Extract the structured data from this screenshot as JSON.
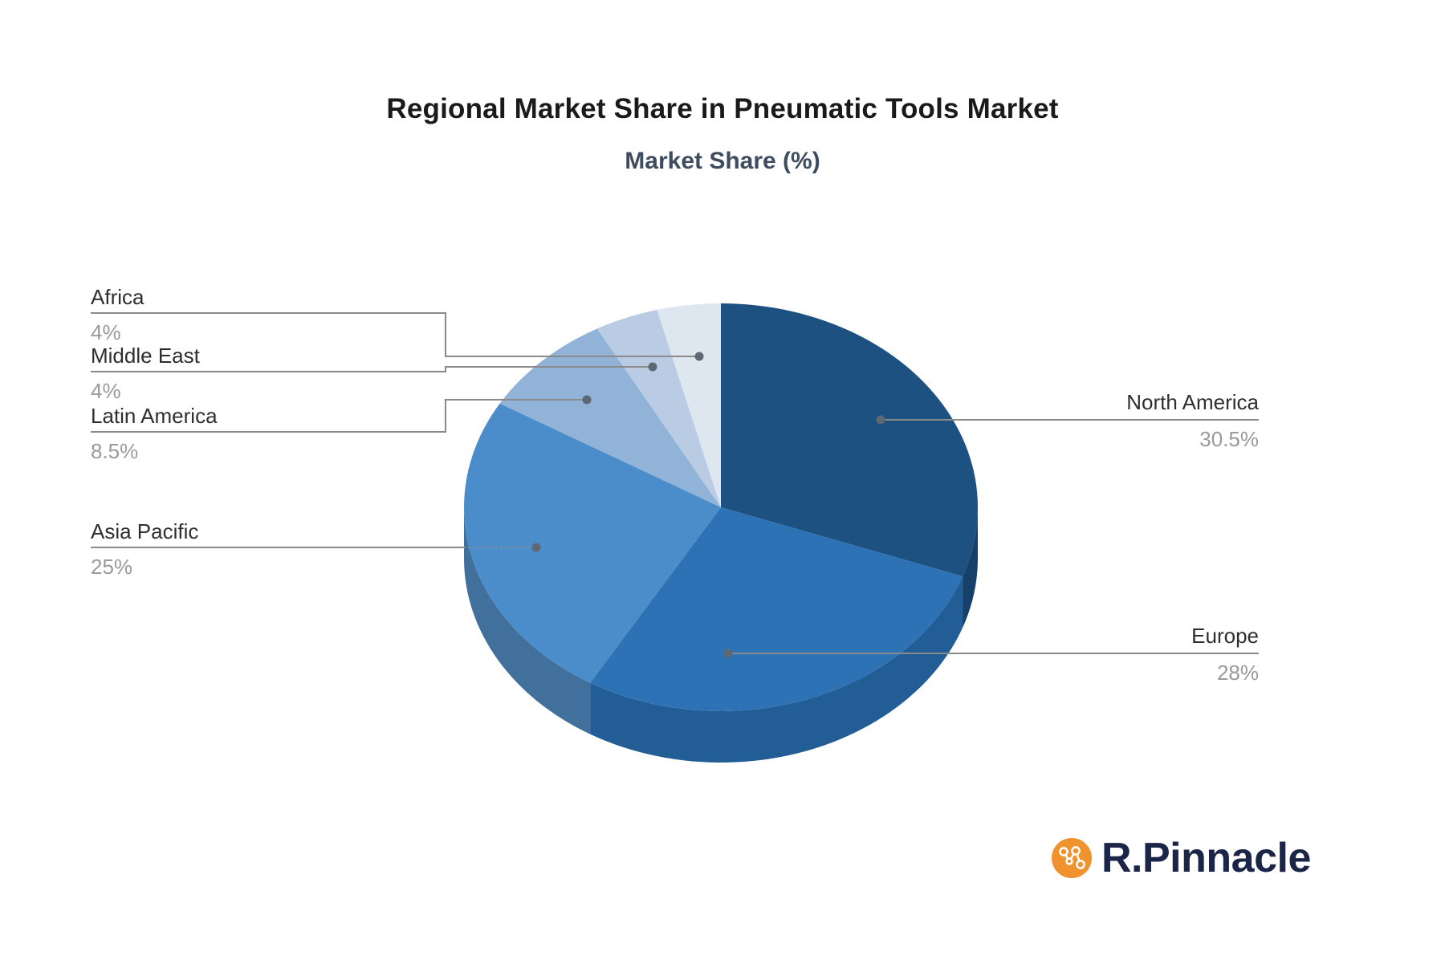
{
  "title": "Regional Market Share in Pneumatic Tools Market",
  "subtitle": "Market Share (%)",
  "chart_data": {
    "type": "pie",
    "style": "3d",
    "title": "Regional Market Share in Pneumatic Tools Market",
    "subtitle": "Market Share (%)",
    "unit": "%",
    "direction": "clockwise",
    "start_angle": "12-oclock",
    "legend_position": "outside-leader-lines",
    "segments": [
      {
        "label": "North America",
        "value": 30.5,
        "display": "30.5%",
        "color": "#1d5181",
        "side_color": "#16406a"
      },
      {
        "label": "Europe",
        "value": 28,
        "display": "28%",
        "color": "#2d72b4",
        "side_color": "#225d95"
      },
      {
        "label": "Asia Pacific",
        "value": 25,
        "display": "25%",
        "color": "#4b8dca",
        "side_color": "#41709d"
      },
      {
        "label": "Latin America",
        "value": 8.5,
        "display": "8.5%",
        "color": "#90b3d7",
        "side_color": "#7693b1"
      },
      {
        "label": "Middle East",
        "value": 4,
        "display": "4%",
        "color": "#b9cce3",
        "side_color": "#98a9bc"
      },
      {
        "label": "Africa",
        "value": 4,
        "display": "4%",
        "color": "#dee6f0",
        "side_color": "#b6bfca"
      }
    ]
  },
  "colors": {
    "background": "#ffffff",
    "leader_line": "#8a8a8a",
    "dot": "#5e6872",
    "label_text": "#2e2e2e",
    "value_text": "#9a9a9a"
  },
  "branding": {
    "logo_text": "R.Pinnacle",
    "logo_icon": "network-nodes-icon",
    "logo_bg_color": "#f0922e",
    "logo_node_color": "#ffffff",
    "logo_text_color": "#1b2547"
  }
}
